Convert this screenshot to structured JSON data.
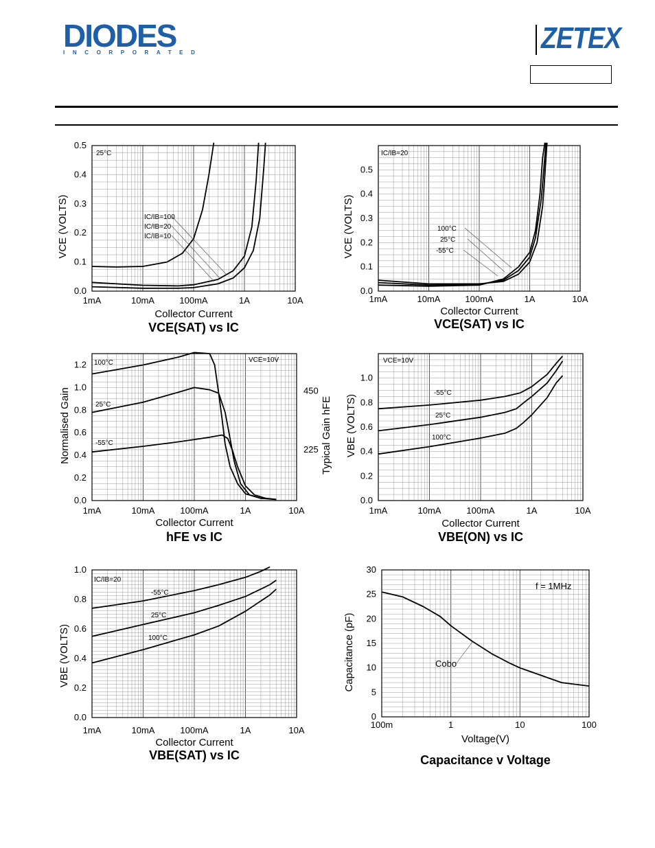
{
  "header": {
    "diodes_logo": "DIODES",
    "diodes_sub": "INCORPORATED",
    "zetex_logo": "ZETEX"
  },
  "chart_data": [
    {
      "type": "line",
      "title": "VCE(SAT) vs IC",
      "xlabel": "Collector Current",
      "ylabel": "VCE (VOLTS)",
      "xscale": "log",
      "xlim": [
        0.001,
        10
      ],
      "ylim": [
        0,
        0.5
      ],
      "xticks": [
        "1mA",
        "10mA",
        "100mA",
        "1A",
        "10A"
      ],
      "yticks": [
        "0.0",
        "0.1",
        "0.2",
        "0.3",
        "0.4",
        "0.5"
      ],
      "annotations": [
        "25°C",
        "IC/IB=100",
        "IC/IB=20",
        "IC/IB=10"
      ],
      "series": [
        {
          "name": "IC/IB=100",
          "x": [
            0.001,
            0.003,
            0.01,
            0.03,
            0.06,
            0.1,
            0.15,
            0.2,
            0.25
          ],
          "y": [
            0.085,
            0.083,
            0.085,
            0.1,
            0.13,
            0.18,
            0.28,
            0.4,
            0.55
          ]
        },
        {
          "name": "IC/IB=20",
          "x": [
            0.001,
            0.01,
            0.05,
            0.1,
            0.3,
            0.6,
            1.0,
            1.4,
            1.7,
            1.9
          ],
          "y": [
            0.03,
            0.02,
            0.018,
            0.022,
            0.04,
            0.07,
            0.12,
            0.22,
            0.38,
            0.55
          ]
        },
        {
          "name": "IC/IB=10",
          "x": [
            0.001,
            0.01,
            0.05,
            0.1,
            0.3,
            0.6,
            1.0,
            1.5,
            2.0,
            2.4,
            2.6
          ],
          "y": [
            0.015,
            0.01,
            0.01,
            0.012,
            0.025,
            0.045,
            0.08,
            0.14,
            0.25,
            0.42,
            0.55
          ]
        }
      ]
    },
    {
      "type": "line",
      "title": "VCE(SAT) vs IC",
      "xlabel": "Collector Current",
      "ylabel": "VCE (VOLTS)",
      "xscale": "log",
      "xlim": [
        0.001,
        10
      ],
      "ylim": [
        0,
        0.6
      ],
      "xticks": [
        "1mA",
        "10mA",
        "100mA",
        "1A",
        "10A"
      ],
      "yticks": [
        "0.0",
        "0.1",
        "0.2",
        "0.3",
        "0.4",
        "0.5"
      ],
      "annotations": [
        "IC/IB=20",
        "100°C",
        "25°C",
        "-55°C"
      ],
      "series": [
        {
          "name": "100°C",
          "x": [
            0.001,
            0.01,
            0.1,
            0.3,
            0.6,
            1.0,
            1.3,
            1.6,
            1.8,
            2.0
          ],
          "y": [
            0.025,
            0.02,
            0.025,
            0.05,
            0.1,
            0.16,
            0.25,
            0.4,
            0.55,
            0.62
          ]
        },
        {
          "name": "25°C",
          "x": [
            0.001,
            0.01,
            0.1,
            0.3,
            0.6,
            1.0,
            1.3,
            1.7,
            1.9,
            2.1
          ],
          "y": [
            0.035,
            0.025,
            0.028,
            0.045,
            0.085,
            0.14,
            0.22,
            0.38,
            0.5,
            0.62
          ]
        },
        {
          "name": "-55°C",
          "x": [
            0.001,
            0.01,
            0.1,
            0.3,
            0.6,
            1.0,
            1.4,
            1.8,
            2.0,
            2.2
          ],
          "y": [
            0.045,
            0.03,
            0.03,
            0.04,
            0.07,
            0.12,
            0.2,
            0.35,
            0.48,
            0.62
          ]
        }
      ]
    },
    {
      "type": "line",
      "title": "hFE vs IC",
      "xlabel": "Collector Current",
      "ylabel": "Normalised Gain",
      "ylabel_right": "Typical Gain hFE",
      "xscale": "log",
      "xlim": [
        0.001,
        10
      ],
      "ylim": [
        0,
        1.3
      ],
      "xticks": [
        "1mA",
        "10mA",
        "100mA",
        "1A",
        "10A"
      ],
      "yticks": [
        "0.0",
        "0.2",
        "0.4",
        "0.6",
        "0.8",
        "1.0",
        "1.2"
      ],
      "yticks_right": [
        "225",
        "450"
      ],
      "annotations": [
        "VCE=10V",
        "100°C",
        "25°C",
        "-55°C"
      ],
      "series": [
        {
          "name": "100°C",
          "x": [
            0.001,
            0.01,
            0.05,
            0.1,
            0.2,
            0.25,
            0.3,
            0.35,
            0.4,
            0.5,
            0.7,
            1.0,
            2.0,
            4.0
          ],
          "y": [
            1.12,
            1.2,
            1.27,
            1.31,
            1.3,
            1.2,
            0.95,
            0.72,
            0.5,
            0.3,
            0.15,
            0.06,
            0.02,
            0.01
          ]
        },
        {
          "name": "25°C",
          "x": [
            0.001,
            0.01,
            0.05,
            0.1,
            0.2,
            0.3,
            0.4,
            0.5,
            0.6,
            0.8,
            1.2,
            2.0,
            4.0
          ],
          "y": [
            0.78,
            0.87,
            0.96,
            1.0,
            0.98,
            0.95,
            0.78,
            0.55,
            0.35,
            0.15,
            0.05,
            0.02,
            0.01
          ]
        },
        {
          "name": "-55°C",
          "x": [
            0.001,
            0.01,
            0.05,
            0.1,
            0.2,
            0.35,
            0.45,
            0.55,
            0.7,
            1.0,
            1.5,
            2.5,
            4.0
          ],
          "y": [
            0.43,
            0.48,
            0.52,
            0.54,
            0.56,
            0.58,
            0.55,
            0.45,
            0.3,
            0.13,
            0.05,
            0.02,
            0.01
          ]
        }
      ]
    },
    {
      "type": "line",
      "title": "VBE(ON) vs IC",
      "xlabel": "Collector Current",
      "ylabel": "VBE (VOLTS)",
      "xscale": "log",
      "xlim": [
        0.001,
        10
      ],
      "ylim": [
        0,
        1.2
      ],
      "xticks": [
        "1mA",
        "10mA",
        "100mA",
        "1A",
        "10A"
      ],
      "yticks": [
        "0.0",
        "0.2",
        "0.4",
        "0.6",
        "0.8",
        "1.0"
      ],
      "annotations": [
        "VCE=10V",
        "-55°C",
        "25°C",
        "100°C"
      ],
      "series": [
        {
          "name": "-55°C",
          "x": [
            0.001,
            0.01,
            0.1,
            0.3,
            0.6,
            1.0,
            2.0,
            3.0,
            4.0
          ],
          "y": [
            0.75,
            0.78,
            0.82,
            0.85,
            0.88,
            0.93,
            1.03,
            1.12,
            1.18
          ]
        },
        {
          "name": "25°C",
          "x": [
            0.001,
            0.01,
            0.1,
            0.3,
            0.5,
            0.7,
            1.0,
            2.0,
            3.0,
            4.0
          ],
          "y": [
            0.57,
            0.62,
            0.68,
            0.72,
            0.75,
            0.8,
            0.85,
            0.96,
            1.06,
            1.14
          ]
        },
        {
          "name": "100°C",
          "x": [
            0.001,
            0.01,
            0.1,
            0.3,
            0.5,
            0.7,
            1.0,
            2.0,
            3.0,
            4.0
          ],
          "y": [
            0.38,
            0.44,
            0.51,
            0.55,
            0.59,
            0.64,
            0.7,
            0.84,
            0.96,
            1.02
          ]
        }
      ]
    },
    {
      "type": "line",
      "title": "VBE(SAT) vs IC",
      "xlabel": "Collector Current",
      "ylabel": "VBE (VOLTS)",
      "xscale": "log",
      "xlim": [
        0.001,
        10
      ],
      "ylim": [
        0,
        1.0
      ],
      "xticks": [
        "1mA",
        "10mA",
        "100mA",
        "1A",
        "10A"
      ],
      "yticks": [
        "0.0",
        "0.2",
        "0.4",
        "0.6",
        "0.8",
        "1.0"
      ],
      "annotations": [
        "IC/IB=20",
        "-55°C",
        "25°C",
        "100°C"
      ],
      "series": [
        {
          "name": "-55°C",
          "x": [
            0.001,
            0.01,
            0.1,
            0.3,
            1.0,
            2.0,
            3.0
          ],
          "y": [
            0.74,
            0.79,
            0.86,
            0.9,
            0.95,
            0.99,
            1.02
          ]
        },
        {
          "name": "25°C",
          "x": [
            0.001,
            0.01,
            0.1,
            0.3,
            1.0,
            3.0,
            4.0
          ],
          "y": [
            0.55,
            0.63,
            0.71,
            0.76,
            0.82,
            0.9,
            0.93
          ]
        },
        {
          "name": "100°C",
          "x": [
            0.001,
            0.01,
            0.1,
            0.3,
            1.0,
            3.0,
            4.0
          ],
          "y": [
            0.37,
            0.46,
            0.56,
            0.62,
            0.72,
            0.83,
            0.87
          ]
        }
      ]
    },
    {
      "type": "line",
      "title": "Capacitance v Voltage",
      "xlabel": "Voltage(V)",
      "ylabel": "Capacitance (pF)",
      "xscale": "log",
      "xlim": [
        0.1,
        100
      ],
      "ylim": [
        0,
        30
      ],
      "xticks": [
        "100m",
        "1",
        "10",
        "100"
      ],
      "yticks": [
        "0",
        "5",
        "10",
        "15",
        "20",
        "25",
        "30"
      ],
      "annotations": [
        "f = 1MHz",
        "Cobo"
      ],
      "series": [
        {
          "name": "Cobo",
          "x": [
            0.1,
            0.2,
            0.4,
            0.7,
            1.0,
            2.0,
            4.0,
            7.0,
            10.0,
            20.0,
            40.0,
            100.0
          ],
          "y": [
            25.5,
            24.5,
            22.5,
            20.5,
            18.6,
            15.5,
            12.8,
            11.0,
            10.0,
            8.5,
            7.0,
            6.3
          ]
        }
      ]
    }
  ]
}
